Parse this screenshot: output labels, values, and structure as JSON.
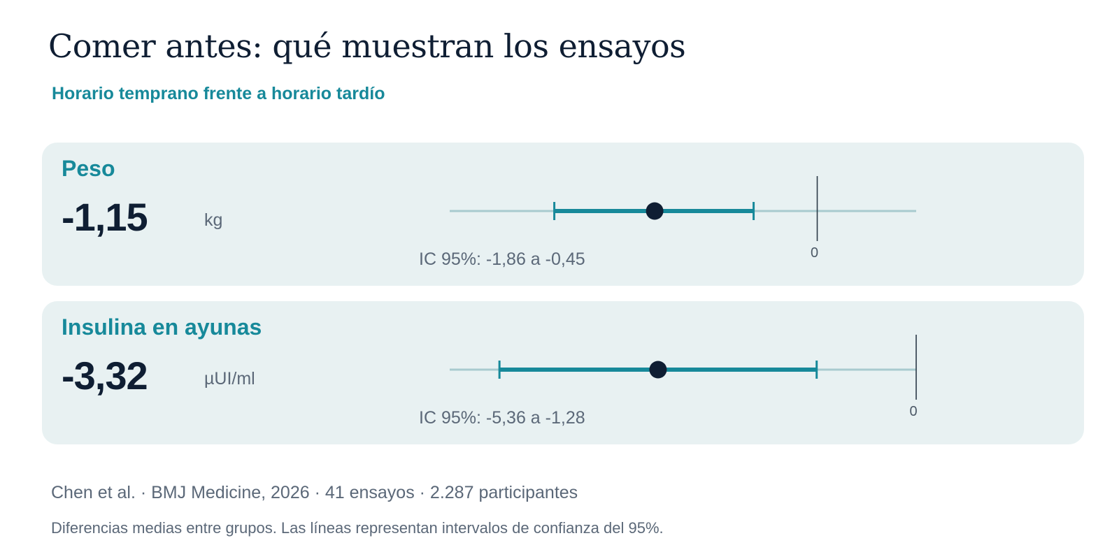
{
  "header": {
    "title": "Comer antes: qué muestran los ensayos",
    "subtitle": "Horario temprano frente a horario tardío"
  },
  "colors": {
    "accent": "#17899a",
    "ink": "#0f1e33",
    "card_background": "#e8f1f2",
    "axis": "#a8cacf",
    "muted_text": "#5b6878"
  },
  "chart_data": [
    {
      "type": "forest",
      "outcome": "Peso",
      "estimate": -1.15,
      "estimate_label": "-1,15",
      "unit": "kg",
      "ci_low": -1.86,
      "ci_high": -0.45,
      "ci_label": "IC 95%: -1,86 a -0,45",
      "reference_value": 0,
      "reference_label": "0",
      "xlim": [
        -2.6,
        0.7
      ]
    },
    {
      "type": "forest",
      "outcome": "Insulina en ayunas",
      "estimate": -3.32,
      "estimate_label": "-3,32",
      "unit": "µUI/ml",
      "ci_low": -5.36,
      "ci_high": -1.28,
      "ci_label": "IC 95%: -5,36 a -1,28",
      "reference_value": 0,
      "reference_label": "0",
      "xlim": [
        -6.0,
        0.0
      ]
    }
  ],
  "footer": {
    "source": "Chen et al. · BMJ Medicine, 2026 · 41 ensayos · 2.287 participantes",
    "note": "Diferencias medias entre grupos. Las líneas representan intervalos de confianza del 95%."
  }
}
